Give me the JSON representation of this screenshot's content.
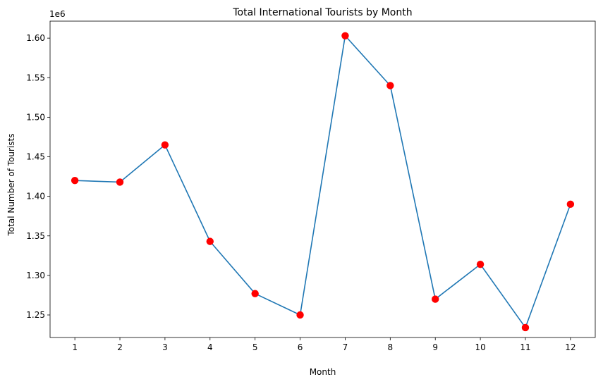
{
  "chart_data": {
    "type": "line",
    "title": "Total International Tourists by Month",
    "xlabel": "Month",
    "ylabel": "Total Number of Tourists",
    "y_multiplier_label": "1e6",
    "x": [
      1,
      2,
      3,
      4,
      5,
      6,
      7,
      8,
      9,
      10,
      11,
      12
    ],
    "x_tick_labels": [
      "1",
      "2",
      "3",
      "4",
      "5",
      "6",
      "7",
      "8",
      "9",
      "10",
      "11",
      "12"
    ],
    "y_ticks": [
      1.25,
      1.3,
      1.35,
      1.4,
      1.45,
      1.5,
      1.55,
      1.6
    ],
    "y_tick_labels": [
      "1.25",
      "1.30",
      "1.35",
      "1.40",
      "1.45",
      "1.50",
      "1.55",
      "1.60"
    ],
    "xlim": [
      0.45,
      12.55
    ],
    "ylim": [
      1.2215,
      1.6215
    ],
    "series": [
      {
        "values": [
          1.42,
          1.418,
          1.465,
          1.343,
          1.277,
          1.25,
          1.603,
          1.54,
          1.27,
          1.314,
          1.234,
          1.39
        ],
        "line_color": "#1f77b4",
        "marker_color": "#ff0000"
      }
    ],
    "grid": false,
    "legend": "none"
  }
}
